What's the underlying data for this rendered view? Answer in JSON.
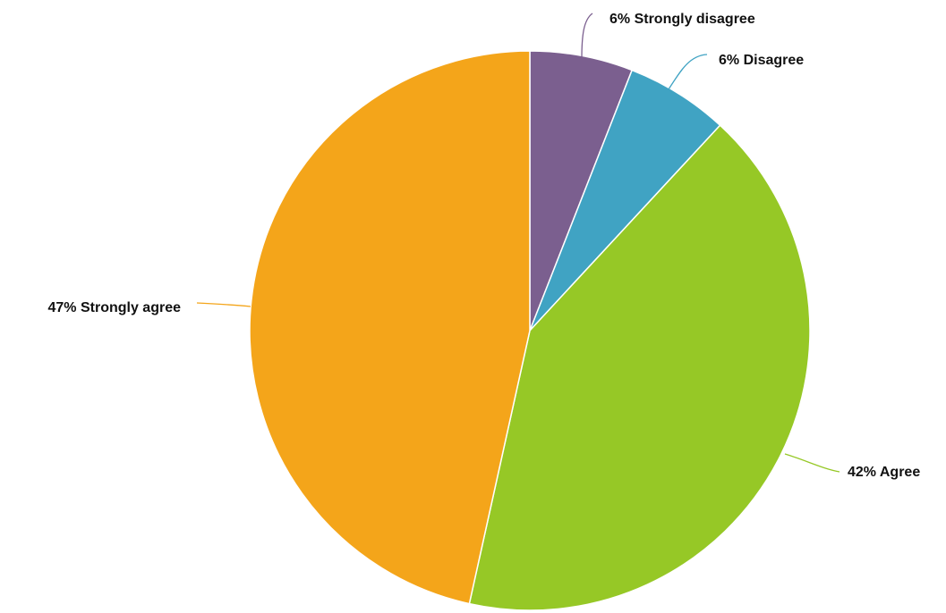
{
  "chart_data": {
    "type": "pie",
    "title": "",
    "slices": [
      {
        "category": "Strongly disagree",
        "value": 6,
        "label": "6% Strongly disagree",
        "color": "#7B5F8F"
      },
      {
        "category": "Disagree",
        "value": 6,
        "label": "6% Disagree",
        "color": "#40A3C3"
      },
      {
        "category": "Agree",
        "value": 42,
        "label": "42% Agree",
        "color": "#96C826"
      },
      {
        "category": "Strongly agree",
        "value": 47,
        "label": "47% Strongly agree",
        "color": "#F4A51A"
      }
    ],
    "start_angle": "12 o'clock, clockwise",
    "legend": "none",
    "data_labels": "outside with leader lines"
  }
}
